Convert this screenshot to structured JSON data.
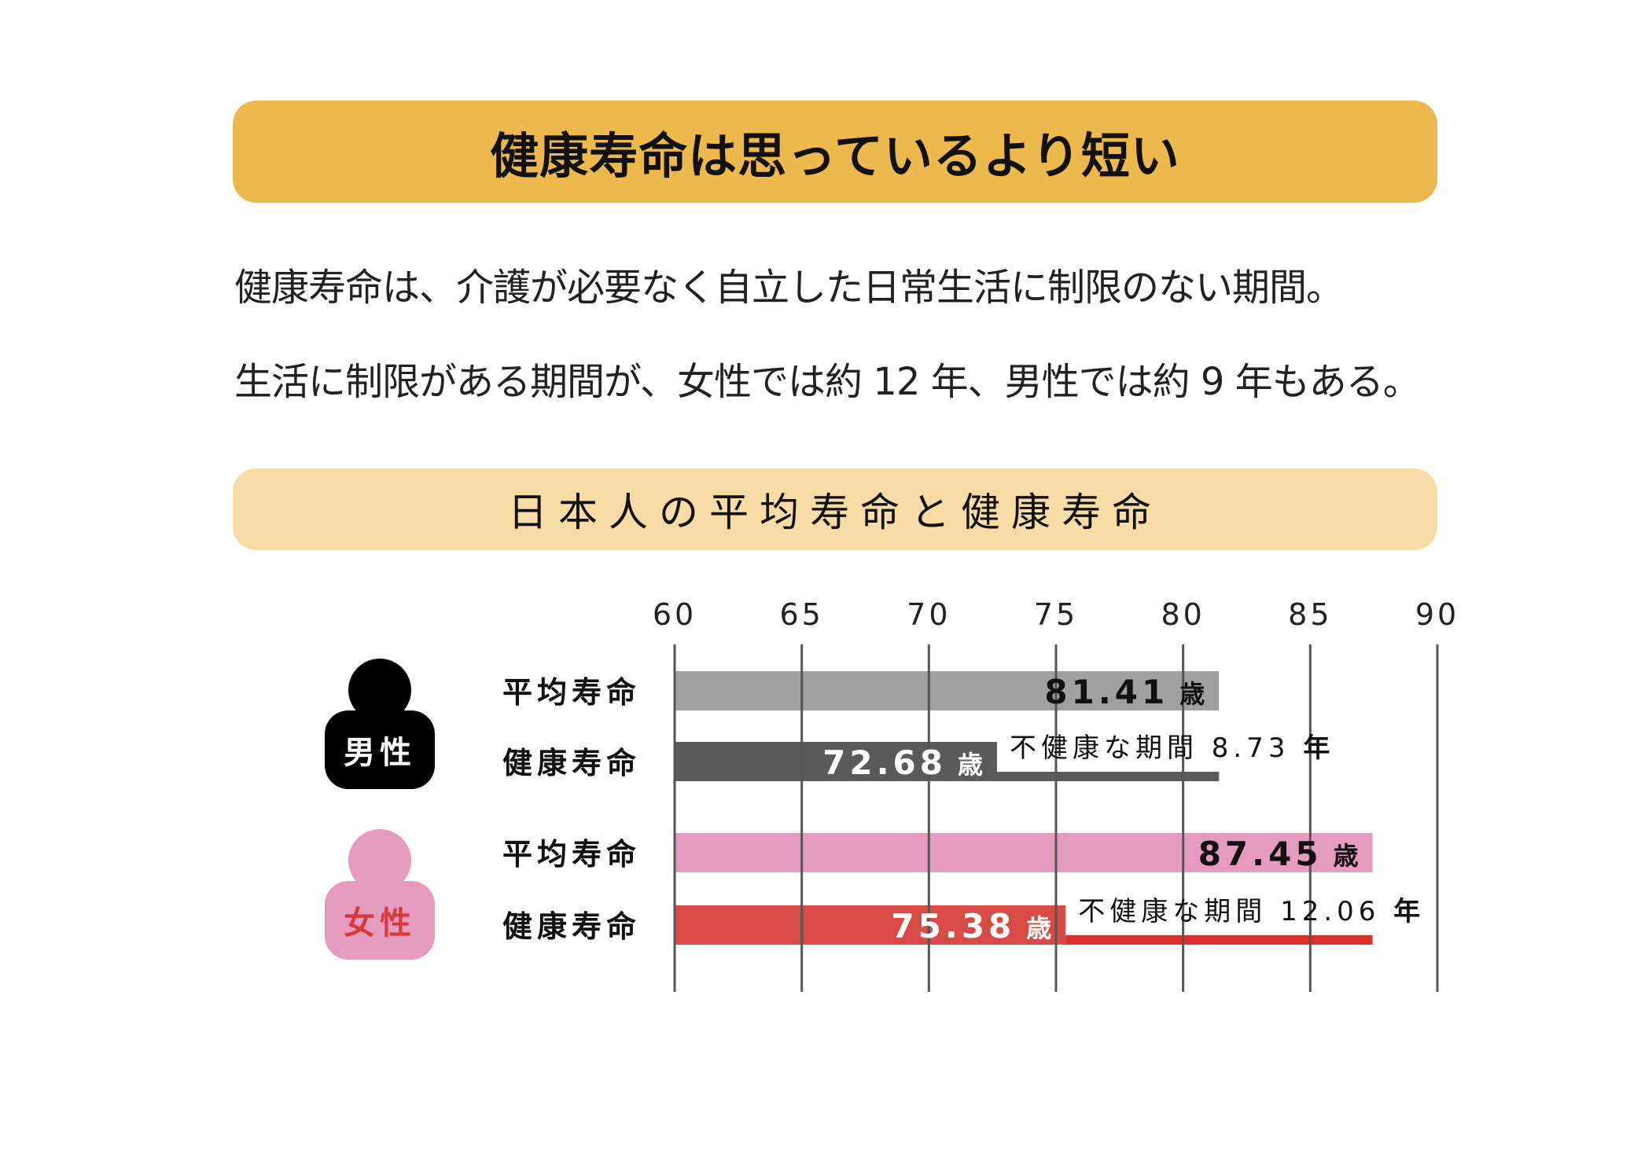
{
  "title": "健康寿命は思っているより短い",
  "description": [
    "健康寿命は、介護が必要なく自立した日常生活に制限のない期間。",
    "生活に制限がある期間が、女性では約 12 年、男性では約 9 年もある。"
  ],
  "chart_title": "日本人の平均寿命と健康寿命",
  "groups": {
    "male": {
      "label": "男性"
    },
    "female": {
      "label": "女性"
    }
  },
  "chart_data": {
    "type": "bar",
    "orientation": "horizontal",
    "xlim": [
      60,
      90
    ],
    "x_ticks": [
      60,
      65,
      70,
      75,
      80,
      85,
      90
    ],
    "grid": true,
    "unit": "歳",
    "rows": [
      {
        "group": "男性",
        "label": "平均寿命",
        "value": 81.41,
        "value_text": "81.41",
        "color": "#A0A0A0",
        "label_color": "#111111"
      },
      {
        "group": "男性",
        "label": "健康寿命",
        "value": 72.68,
        "value_text": "72.68",
        "color": "#5A5A5A",
        "label_color": "#FFFFFF",
        "gap_to": 81.41,
        "gap_color": "#5A5A5A",
        "gap_label": "不健康な期間",
        "gap_value": "8.73",
        "gap_unit": "年"
      },
      {
        "group": "女性",
        "label": "平均寿命",
        "value": 87.45,
        "value_text": "87.45",
        "color": "#E49BBF",
        "label_color": "#111111"
      },
      {
        "group": "女性",
        "label": "健康寿命",
        "value": 75.38,
        "value_text": "75.38",
        "color": "#D84A44",
        "label_color": "#FFFFFF",
        "gap_to": 87.45,
        "gap_color": "#D8302C",
        "gap_label": "不健康な期間",
        "gap_value": "12.06",
        "gap_unit": "年"
      }
    ]
  }
}
